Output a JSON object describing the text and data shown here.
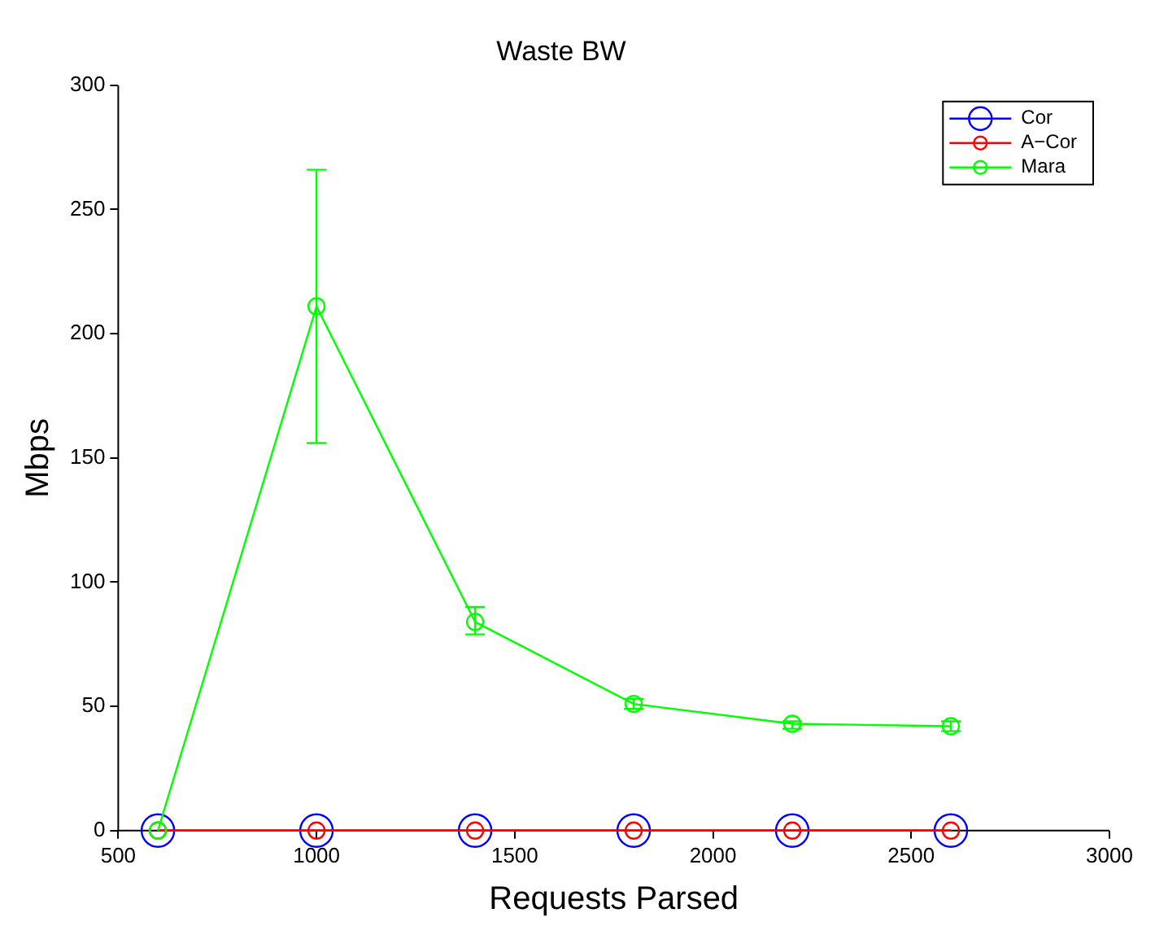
{
  "chart_data": {
    "type": "line",
    "title": "Waste BW",
    "xlabel": "Requests Parsed",
    "ylabel": "Mbps",
    "x": [
      600,
      1000,
      1400,
      1800,
      2200,
      2600
    ],
    "series": [
      {
        "name": "Cor",
        "color": "#0000ff",
        "values": [
          0,
          0,
          0,
          0,
          0,
          0
        ],
        "marker": "circle"
      },
      {
        "name": "A−Cor",
        "color": "#ff0000",
        "values": [
          0,
          0,
          0,
          0,
          0,
          0
        ],
        "marker": "circle"
      },
      {
        "name": "Mara",
        "color": "#00ff00",
        "values": [
          0,
          211,
          84,
          51,
          43,
          42
        ],
        "errors": [
          null,
          [
            156,
            266
          ],
          [
            79,
            90
          ],
          [
            49,
            53
          ],
          [
            41,
            44
          ],
          [
            40,
            44
          ]
        ],
        "marker": "circle"
      }
    ],
    "xlim": [
      500,
      3000
    ],
    "xticks": [
      500,
      1000,
      1500,
      2000,
      2500,
      3000
    ],
    "ylim": [
      0,
      300
    ],
    "yticks": [
      0,
      50,
      100,
      150,
      200,
      250,
      300
    ],
    "grid": false,
    "legend": "top right"
  }
}
